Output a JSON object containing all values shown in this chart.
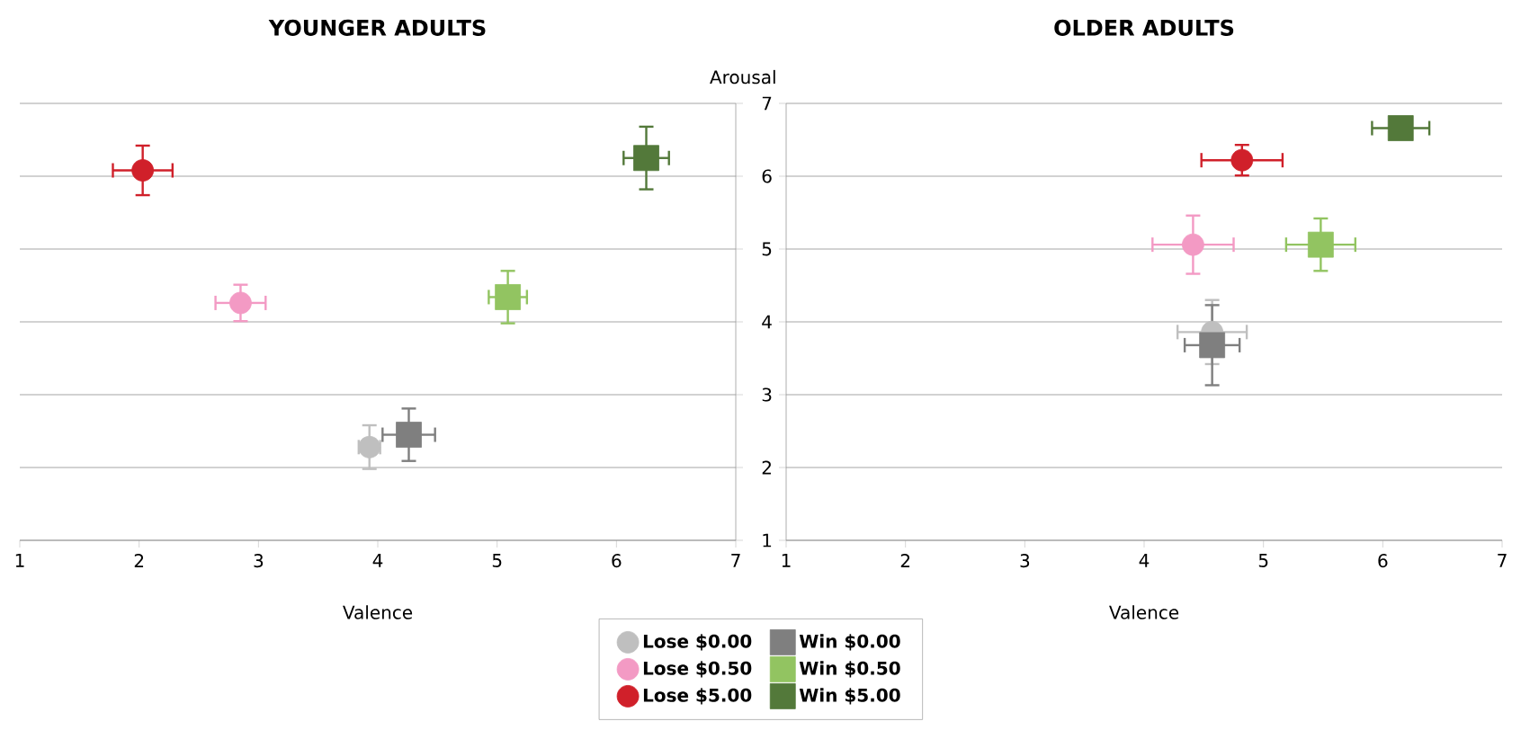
{
  "chart_data": [
    {
      "type": "scatter",
      "title": "YOUNGER ADULTS",
      "xlabel": "Valence",
      "xlim": [
        1,
        7
      ],
      "ylim": [
        1,
        7
      ],
      "xticks": [
        1,
        2,
        3,
        4,
        5,
        6,
        7
      ],
      "yticks": [
        1,
        2,
        3,
        4,
        5,
        6,
        7
      ],
      "grid": "y",
      "tick_labels": "x",
      "legend": "bottom",
      "series": [
        {
          "name": "Lose $0.00",
          "color": "#bfbfbf",
          "marker": "circle",
          "x": [
            3.93
          ],
          "values": [
            2.28
          ],
          "xerrors": [
            0.09
          ],
          "errors": [
            0.3
          ]
        },
        {
          "name": "Win $0.00",
          "color": "#7f7f7f",
          "marker": "square",
          "x": [
            4.26
          ],
          "values": [
            2.45
          ],
          "xerrors": [
            0.22
          ],
          "errors": [
            0.36
          ]
        },
        {
          "name": "Lose $0.50",
          "color": "#f39ac4",
          "marker": "circle",
          "x": [
            2.85
          ],
          "values": [
            4.26
          ],
          "xerrors": [
            0.21
          ],
          "errors": [
            0.25
          ]
        },
        {
          "name": "Win $0.50",
          "color": "#92c461",
          "marker": "square",
          "x": [
            5.09
          ],
          "values": [
            4.34
          ],
          "xerrors": [
            0.16
          ],
          "errors": [
            0.36
          ]
        },
        {
          "name": "Lose $5.00",
          "color": "#d0202a",
          "marker": "circle",
          "x": [
            2.03
          ],
          "values": [
            6.08
          ],
          "xerrors": [
            0.25
          ],
          "errors": [
            0.34
          ]
        },
        {
          "name": "Win $5.00",
          "color": "#53793a",
          "marker": "square",
          "x": [
            6.25
          ],
          "values": [
            6.25
          ],
          "xerrors": [
            0.19
          ],
          "errors": [
            0.43
          ]
        }
      ]
    },
    {
      "type": "scatter",
      "title": "OLDER ADULTS",
      "xlabel": "Valence",
      "ylabel": "Arousal",
      "xlim": [
        1,
        7
      ],
      "ylim": [
        1,
        7
      ],
      "xticks": [
        1,
        2,
        3,
        4,
        5,
        6,
        7
      ],
      "yticks": [
        1,
        2,
        3,
        4,
        5,
        6,
        7
      ],
      "grid": "y",
      "series": [
        {
          "color": "#bfbfbf",
          "marker": "circle",
          "x": [
            4.57
          ],
          "values": [
            3.86
          ],
          "xerrors": [
            0.29
          ],
          "errors": [
            0.44
          ]
        },
        {
          "color": "#7f7f7f",
          "marker": "square",
          "x": [
            4.57
          ],
          "values": [
            3.68
          ],
          "xerrors": [
            0.23
          ],
          "errors": [
            0.55
          ]
        },
        {
          "color": "#f39ac4",
          "marker": "circle",
          "x": [
            4.41
          ],
          "values": [
            5.06
          ],
          "xerrors": [
            0.34
          ],
          "errors": [
            0.4
          ]
        },
        {
          "color": "#92c461",
          "marker": "square",
          "x": [
            5.48
          ],
          "values": [
            5.06
          ],
          "xerrors": [
            0.29
          ],
          "errors": [
            0.36
          ]
        },
        {
          "color": "#d0202a",
          "marker": "circle",
          "x": [
            4.82
          ],
          "values": [
            6.22
          ],
          "xerrors": [
            0.34
          ],
          "errors": [
            0.21
          ]
        },
        {
          "color": "#53793a",
          "marker": "square",
          "x": [
            6.15
          ],
          "values": [
            6.66
          ],
          "xerrors": [
            0.24
          ],
          "errors": [
            null
          ]
        }
      ]
    }
  ]
}
